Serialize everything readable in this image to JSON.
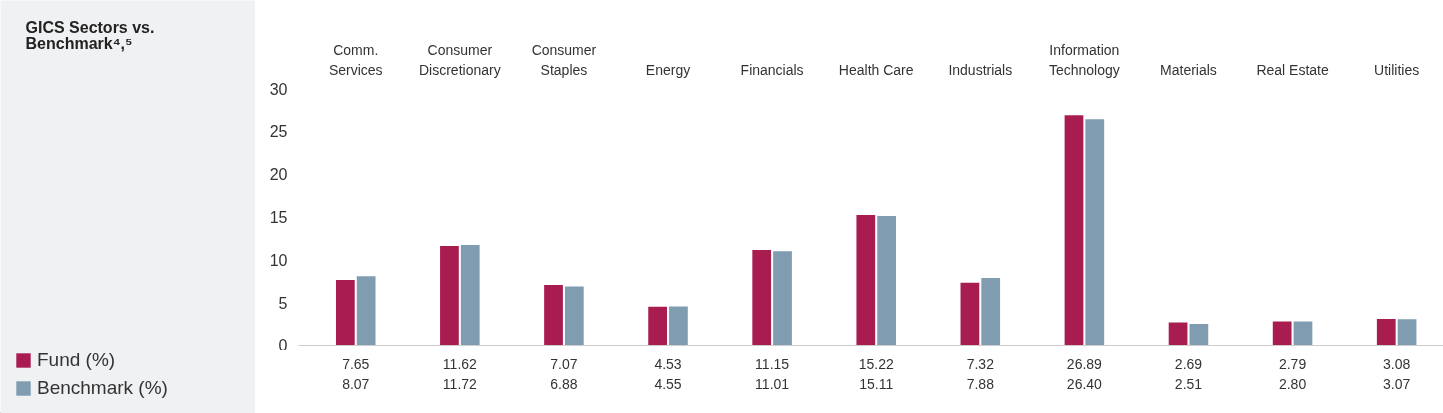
{
  "chart_data": {
    "type": "bar",
    "title": "GICS Sectors vs.\nBenchmark⁴,⁵",
    "categories": [
      "Comm.\nServices",
      "Consumer\nDiscretionary",
      "Consumer\nStaples",
      "Energy",
      "Financials",
      "Health Care",
      "Industrials",
      "Information\nTechnology",
      "Materials",
      "Real Estate",
      "Utilities"
    ],
    "series": [
      {
        "name": "Fund (%)",
        "color": "#a81c4f",
        "values": [
          7.65,
          11.62,
          7.07,
          4.53,
          11.15,
          15.22,
          7.32,
          26.89,
          2.69,
          2.79,
          3.08
        ],
        "value_labels": [
          "7.65",
          "11.62",
          "7.07",
          "4.53",
          "11.15",
          "15.22",
          "7.32",
          "26.89",
          "2.69",
          "2.79",
          "3.08"
        ]
      },
      {
        "name": "Benchmark (%)",
        "color": "#7f9cb0",
        "values": [
          8.07,
          11.72,
          6.88,
          4.55,
          11.01,
          15.11,
          7.88,
          26.4,
          2.51,
          2.8,
          3.07
        ],
        "value_labels": [
          "8.07",
          "11.72",
          "6.88",
          "4.55",
          "11.01",
          "15.11",
          "7.88",
          "26.40",
          "2.51",
          "2.80",
          "3.07"
        ]
      }
    ],
    "ylim": [
      0,
      30
    ],
    "yticks": [
      0,
      5,
      10,
      15,
      20,
      25,
      30
    ],
    "legend": "bottom left",
    "grid": false
  }
}
